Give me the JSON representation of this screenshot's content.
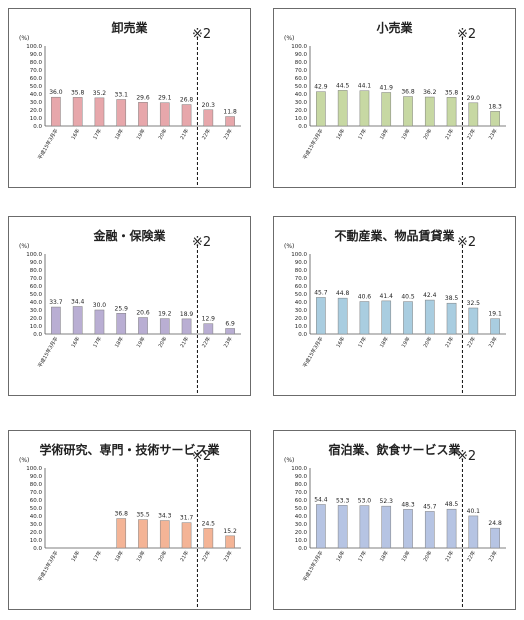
{
  "chart_data": [
    {
      "type": "bar",
      "title": "卸売業",
      "unit": "(%)",
      "note": "※2",
      "ylim": [
        0,
        100
      ],
      "yticks": [
        "0.0",
        "10.0",
        "20.0",
        "30.0",
        "40.0",
        "50.0",
        "60.0",
        "70.0",
        "80.0",
        "90.0",
        "100.0"
      ],
      "categories": [
        "平成15年3月卒",
        "16年",
        "17年",
        "18年",
        "19年",
        "20年",
        "21年",
        "22年",
        "23年"
      ],
      "values": [
        36.0,
        35.8,
        35.2,
        33.1,
        29.6,
        29.1,
        26.8,
        20.3,
        11.8
      ],
      "labels": [
        "36.0",
        "35.8",
        "35.2",
        "33.1",
        "29.6",
        "29.1",
        "26.8",
        "20.3",
        "11.8"
      ],
      "color": "#e7a7ab"
    },
    {
      "type": "bar",
      "title": "小売業",
      "unit": "(%)",
      "note": "※2",
      "ylim": [
        0,
        100
      ],
      "yticks": [
        "0.0",
        "10.0",
        "20.0",
        "30.0",
        "40.0",
        "50.0",
        "60.0",
        "70.0",
        "80.0",
        "90.0",
        "100.0"
      ],
      "categories": [
        "平成15年3月卒",
        "16年",
        "17年",
        "18年",
        "19年",
        "20年",
        "21年",
        "22年",
        "23年"
      ],
      "values": [
        42.9,
        44.5,
        44.1,
        41.9,
        36.8,
        36.2,
        35.8,
        29.0,
        18.3
      ],
      "labels": [
        "42.9",
        "44.5",
        "44.1",
        "41.9",
        "36.8",
        "36.2",
        "35.8",
        "29.0",
        "18.3"
      ],
      "color": "#c7d8a3"
    },
    {
      "type": "bar",
      "title": "金融・保険業",
      "unit": "(%)",
      "note": "※2",
      "ylim": [
        0,
        100
      ],
      "yticks": [
        "0.0",
        "10.0",
        "20.0",
        "30.0",
        "40.0",
        "50.0",
        "60.0",
        "70.0",
        "80.0",
        "90.0",
        "100.0"
      ],
      "categories": [
        "平成15年3月卒",
        "16年",
        "17年",
        "18年",
        "19年",
        "20年",
        "21年",
        "22年",
        "23年"
      ],
      "values": [
        33.7,
        34.4,
        30.0,
        25.9,
        20.6,
        19.2,
        18.9,
        12.9,
        6.9
      ],
      "labels": [
        "33.7",
        "34.4",
        "30.0",
        "25.9",
        "20.6",
        "19.2",
        "18.9",
        "12.9",
        "6.9"
      ],
      "color": "#b9aed3"
    },
    {
      "type": "bar",
      "title": "不動産業、物品賃貸業",
      "unit": "(%)",
      "note": "※2",
      "ylim": [
        0,
        100
      ],
      "yticks": [
        "0.0",
        "10.0",
        "20.0",
        "30.0",
        "40.0",
        "50.0",
        "60.0",
        "70.0",
        "80.0",
        "90.0",
        "100.0"
      ],
      "categories": [
        "平成15年3月卒",
        "16年",
        "17年",
        "18年",
        "19年",
        "20年",
        "21年",
        "22年",
        "23年"
      ],
      "values": [
        45.7,
        44.8,
        40.6,
        41.4,
        40.5,
        42.4,
        38.5,
        32.5,
        19.1
      ],
      "labels": [
        "45.7",
        "44.8",
        "40.6",
        "41.4",
        "40.5",
        "42.4",
        "38.5",
        "32.5",
        "19.1"
      ],
      "color": "#a9cde0"
    },
    {
      "type": "bar",
      "title": "学術研究、専門・技術サービス業",
      "unit": "(%)",
      "note": "※2",
      "ylim": [
        0,
        100
      ],
      "yticks": [
        "0.0",
        "10.0",
        "20.0",
        "30.0",
        "40.0",
        "50.0",
        "60.0",
        "70.0",
        "80.0",
        "90.0",
        "100.0"
      ],
      "categories": [
        "平成15年3月卒",
        "16年",
        "17年",
        "18年",
        "19年",
        "20年",
        "21年",
        "22年",
        "23年"
      ],
      "values": [
        null,
        null,
        null,
        36.8,
        35.5,
        34.3,
        31.7,
        24.5,
        15.2
      ],
      "labels": [
        "",
        "",
        "",
        "36.8",
        "35.5",
        "34.3",
        "31.7",
        "24.5",
        "15.2"
      ],
      "color": "#f4b496"
    },
    {
      "type": "bar",
      "title": "宿泊業、飲食サービス業",
      "unit": "(%)",
      "note": "※2",
      "ylim": [
        0,
        100
      ],
      "yticks": [
        "0.0",
        "10.0",
        "20.0",
        "30.0",
        "40.0",
        "50.0",
        "60.0",
        "70.0",
        "80.0",
        "90.0",
        "100.0"
      ],
      "categories": [
        "平成15年3月卒",
        "16年",
        "17年",
        "18年",
        "19年",
        "20年",
        "21年",
        "22年",
        "23年"
      ],
      "values": [
        54.4,
        53.3,
        53.0,
        52.3,
        48.3,
        45.7,
        48.5,
        40.1,
        24.8
      ],
      "labels": [
        "54.4",
        "53.3",
        "53.0",
        "52.3",
        "48.3",
        "45.7",
        "48.5",
        "40.1",
        "24.8"
      ],
      "color": "#b6c4e3"
    }
  ]
}
